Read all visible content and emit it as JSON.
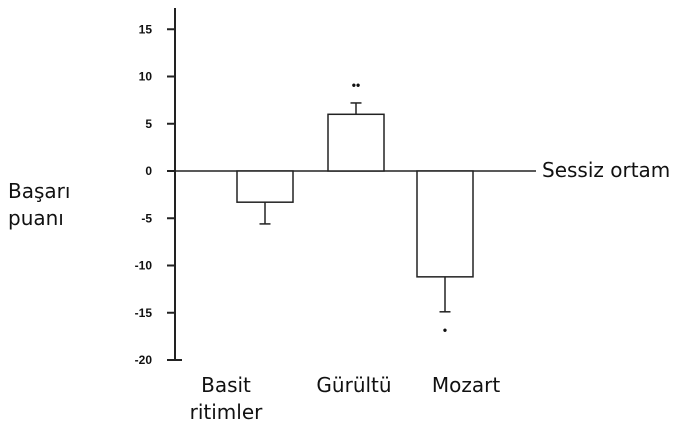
{
  "chart_data": {
    "type": "bar",
    "title": "",
    "xlabel": "",
    "ylabel": [
      "Başarı",
      "puanı"
    ],
    "baseline_label": "Sessiz ortam",
    "ylim": [
      -20,
      17
    ],
    "yticks": [
      15,
      10,
      5,
      0,
      -5,
      -10,
      -15,
      -20
    ],
    "categories": [
      [
        "Basit",
        "ritimler"
      ],
      [
        "Gürültü"
      ],
      [
        "Mozart"
      ]
    ],
    "values": [
      -3.3,
      6.0,
      -11.2
    ],
    "error": [
      2.3,
      1.2,
      3.7
    ],
    "significance": [
      "",
      "••",
      "•"
    ],
    "colors": {
      "bar_fill": "#ffffff",
      "stroke": "#222222"
    }
  }
}
